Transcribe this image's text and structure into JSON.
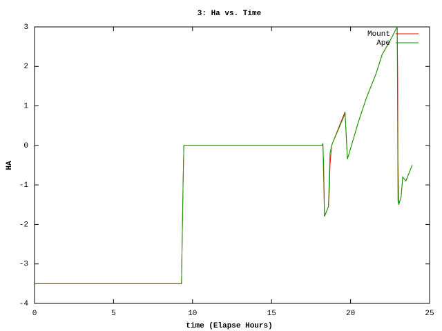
{
  "chart_data": {
    "type": "line",
    "title": "3: Ha vs. Time",
    "x_label": "time (Elapse Hours)",
    "y_label": "HA",
    "xlim": [
      0,
      25
    ],
    "ylim": [
      -4,
      3
    ],
    "xticks": [
      0,
      5,
      10,
      15,
      20,
      25
    ],
    "yticks": [
      -4,
      -3,
      -2,
      -1,
      0,
      1,
      2,
      3
    ],
    "grid": false,
    "legend": "top-right",
    "series": [
      {
        "name": "Mount",
        "color": "#ff0000",
        "x": [
          0,
          9.3,
          9.4,
          9.45,
          18.2,
          18.25,
          18.35,
          18.6,
          18.65,
          18.7,
          18.8,
          19.65,
          19.8,
          20.5,
          21.0,
          21.6,
          22.0,
          22.5,
          22.95,
          22.98,
          23.0,
          23.05,
          23.2,
          23.3,
          23.5,
          23.9
        ],
        "values": [
          -3.5,
          -3.5,
          -1.0,
          0,
          0,
          0.05,
          -1.8,
          -1.55,
          -1.2,
          -0.5,
          0,
          0.85,
          -0.35,
          0.6,
          1.2,
          1.8,
          2.3,
          2.65,
          3.0,
          1.9,
          -0.4,
          -1.5,
          -1.3,
          -0.8,
          -0.9,
          -0.5
        ]
      },
      {
        "name": "Ape",
        "color": "#00a000",
        "x": [
          0,
          9.3,
          9.4,
          9.45,
          18.2,
          18.25,
          18.3,
          18.35,
          18.6,
          18.7,
          18.8,
          19.6,
          19.65,
          19.8,
          20.5,
          21.0,
          21.6,
          22.0,
          22.5,
          22.95,
          23.0,
          23.05,
          23.2,
          23.3,
          23.5,
          23.9
        ],
        "values": [
          -3.5,
          -3.5,
          -1.0,
          0,
          0,
          0.05,
          -0.5,
          -1.8,
          -1.55,
          -0.2,
          0,
          0.75,
          0.85,
          -0.35,
          0.6,
          1.2,
          1.8,
          2.3,
          2.65,
          3.0,
          -1.4,
          -1.5,
          -1.3,
          -0.8,
          -0.9,
          -0.5
        ]
      }
    ]
  }
}
